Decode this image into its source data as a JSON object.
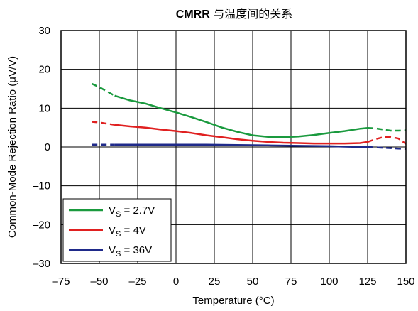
{
  "chart_data": {
    "type": "line",
    "title_bold": "CMRR",
    "title_rest": " 与温度间的关系",
    "xlabel": "Temperature (°C)",
    "ylabel": "Common-Mode Rejection Ratio (μV/V)",
    "xlim": [
      -75,
      150
    ],
    "ylim": [
      -30,
      30
    ],
    "xticks": [
      -75,
      -50,
      -25,
      0,
      25,
      50,
      75,
      100,
      125,
      150
    ],
    "yticks": [
      -30,
      -20,
      -10,
      0,
      10,
      20,
      30
    ],
    "grid": true,
    "legend_position": "bottom-left",
    "series": [
      {
        "name_main": "V",
        "name_sub": "S",
        "name_rest": " = 2.7V",
        "color": "#1a9a3e",
        "solid": [
          [
            -40,
            13.2
          ],
          [
            -30,
            12.0
          ],
          [
            -20,
            11.2
          ],
          [
            -10,
            10.0
          ],
          [
            0,
            8.9
          ],
          [
            10,
            7.7
          ],
          [
            20,
            6.4
          ],
          [
            30,
            5.0
          ],
          [
            40,
            3.9
          ],
          [
            50,
            3.0
          ],
          [
            60,
            2.6
          ],
          [
            70,
            2.5
          ],
          [
            80,
            2.7
          ],
          [
            90,
            3.1
          ],
          [
            100,
            3.6
          ],
          [
            110,
            4.1
          ],
          [
            120,
            4.7
          ],
          [
            125,
            4.9
          ]
        ],
        "dashed": [
          [
            -55,
            16.3
          ],
          [
            -50,
            15.4
          ],
          [
            -45,
            14.3
          ],
          [
            -40,
            13.2
          ]
        ],
        "dashed_end": [
          [
            125,
            4.9
          ],
          [
            130,
            4.8
          ],
          [
            135,
            4.5
          ],
          [
            140,
            4.2
          ],
          [
            145,
            4.2
          ],
          [
            150,
            4.3
          ]
        ]
      },
      {
        "name_main": "V",
        "name_sub": "S",
        "name_rest": " = 4V",
        "color": "#e02020",
        "solid": [
          [
            -40,
            5.7
          ],
          [
            -30,
            5.3
          ],
          [
            -20,
            5.0
          ],
          [
            -10,
            4.5
          ],
          [
            0,
            4.1
          ],
          [
            10,
            3.6
          ],
          [
            20,
            3.0
          ],
          [
            30,
            2.5
          ],
          [
            40,
            2.0
          ],
          [
            50,
            1.6
          ],
          [
            60,
            1.3
          ],
          [
            70,
            1.1
          ],
          [
            80,
            1.0
          ],
          [
            90,
            0.9
          ],
          [
            100,
            0.9
          ],
          [
            110,
            0.9
          ],
          [
            120,
            1.0
          ],
          [
            125,
            1.3
          ]
        ],
        "dashed": [
          [
            -55,
            6.5
          ],
          [
            -50,
            6.3
          ],
          [
            -45,
            6.0
          ],
          [
            -40,
            5.7
          ]
        ],
        "dashed_end": [
          [
            125,
            1.3
          ],
          [
            130,
            2.0
          ],
          [
            135,
            2.5
          ],
          [
            140,
            2.6
          ],
          [
            145,
            2.2
          ],
          [
            150,
            0.8
          ]
        ]
      },
      {
        "name_main": "V",
        "name_sub": "S",
        "name_rest": " = 36V",
        "color": "#1f2a8a",
        "solid": [
          [
            -40,
            0.6
          ],
          [
            -20,
            0.6
          ],
          [
            0,
            0.6
          ],
          [
            20,
            0.6
          ],
          [
            40,
            0.5
          ],
          [
            60,
            0.4
          ],
          [
            80,
            0.3
          ],
          [
            100,
            0.2
          ],
          [
            110,
            0.1
          ],
          [
            120,
            0.0
          ],
          [
            125,
            0.0
          ]
        ],
        "dashed": [
          [
            -55,
            0.6
          ],
          [
            -50,
            0.6
          ],
          [
            -45,
            0.6
          ],
          [
            -40,
            0.6
          ]
        ],
        "dashed_end": [
          [
            125,
            0.0
          ],
          [
            130,
            -0.1
          ],
          [
            135,
            -0.2
          ],
          [
            140,
            -0.3
          ],
          [
            145,
            -0.4
          ],
          [
            150,
            -0.5
          ]
        ]
      }
    ]
  }
}
